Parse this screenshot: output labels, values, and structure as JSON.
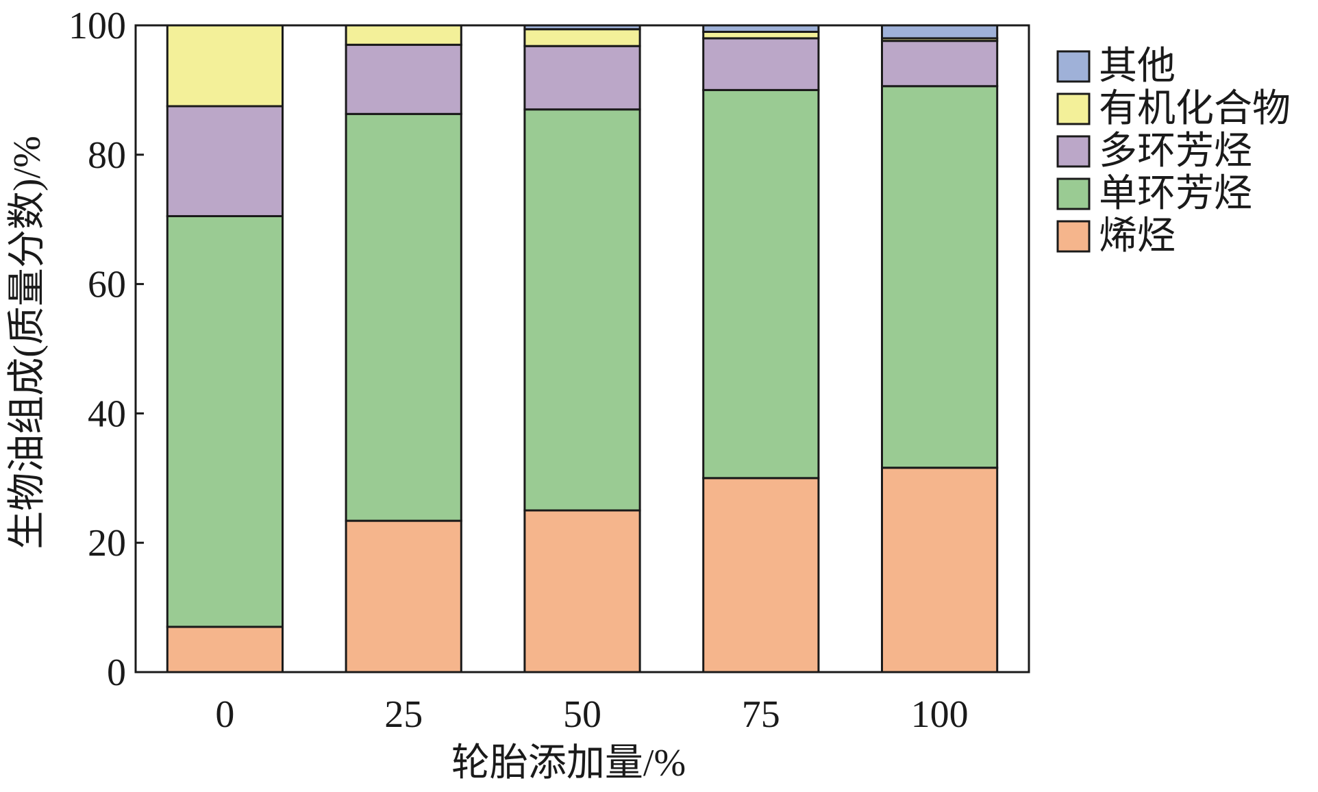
{
  "chart_data": {
    "type": "bar",
    "stacked": true,
    "title": "",
    "xlabel": "轮胎添加量/%",
    "ylabel": "生物油组成(质量分数)/%",
    "ylim": [
      0,
      100
    ],
    "yticks": [
      "0",
      "20",
      "40",
      "60",
      "80",
      "100"
    ],
    "categories": [
      "0",
      "25",
      "50",
      "75",
      "100"
    ],
    "grid": false,
    "legend_position": "right",
    "series": [
      {
        "name": "烯烃",
        "color": "#f5b58c",
        "values": [
          7.0,
          23.4,
          25.0,
          30.0,
          31.6
        ]
      },
      {
        "name": "单环芳烃",
        "color": "#9acb93",
        "values": [
          63.5,
          62.9,
          62.0,
          60.0,
          59.0
        ]
      },
      {
        "name": "多环芳烃",
        "color": "#bba7c8",
        "values": [
          17.0,
          10.7,
          9.8,
          8.0,
          7.0
        ]
      },
      {
        "name": "有机化合物",
        "color": "#f3f099",
        "values": [
          12.5,
          3.0,
          2.6,
          1.0,
          0.4
        ]
      },
      {
        "name": "其他",
        "color": "#9fb1d8",
        "values": [
          0,
          0,
          0.6,
          1.0,
          2.0
        ]
      }
    ],
    "legend_order": [
      "其他",
      "有机化合物",
      "多环芳烃",
      "单环芳烃",
      "烯烃"
    ]
  }
}
